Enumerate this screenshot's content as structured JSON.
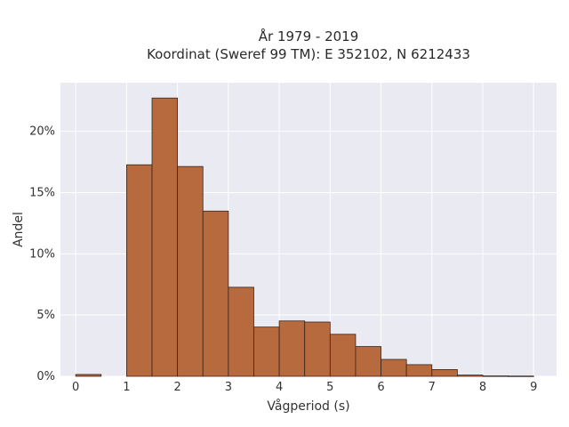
{
  "chart_data": {
    "type": "bar",
    "title": [
      "År 1979 - 2019",
      "Koordinat (Sweref 99 TM): E 352102, N 6212433"
    ],
    "xlabel": "Vågperiod (s)",
    "ylabel": "Andel",
    "xlim": [
      -0.3,
      9.45
    ],
    "ylim": [
      0,
      0.2397
    ],
    "xticks": [
      0,
      1,
      2,
      3,
      4,
      5,
      6,
      7,
      8,
      9
    ],
    "yticks": [
      0,
      0.05,
      0.1,
      0.15,
      0.2
    ],
    "ytick_labels": [
      "0%",
      "5%",
      "10%",
      "15%",
      "20%"
    ],
    "bin_width": 0.5,
    "bins": [
      {
        "x0": 0.0,
        "x1": 0.5,
        "value": 0.0015
      },
      {
        "x0": 1.0,
        "x1": 1.5,
        "value": 0.1727
      },
      {
        "x0": 1.5,
        "x1": 2.0,
        "value": 0.2272
      },
      {
        "x0": 2.0,
        "x1": 2.5,
        "value": 0.1713
      },
      {
        "x0": 2.5,
        "x1": 3.0,
        "value": 0.1349
      },
      {
        "x0": 3.0,
        "x1": 3.5,
        "value": 0.0727
      },
      {
        "x0": 3.5,
        "x1": 4.0,
        "value": 0.0402
      },
      {
        "x0": 4.0,
        "x1": 4.5,
        "value": 0.0452
      },
      {
        "x0": 4.5,
        "x1": 5.0,
        "value": 0.0443
      },
      {
        "x0": 5.0,
        "x1": 5.5,
        "value": 0.0343
      },
      {
        "x0": 5.5,
        "x1": 6.0,
        "value": 0.0243
      },
      {
        "x0": 6.0,
        "x1": 6.5,
        "value": 0.0138
      },
      {
        "x0": 6.5,
        "x1": 7.0,
        "value": 0.0095
      },
      {
        "x0": 7.0,
        "x1": 7.5,
        "value": 0.0055
      },
      {
        "x0": 7.5,
        "x1": 8.0,
        "value": 0.001
      },
      {
        "x0": 8.0,
        "x1": 8.5,
        "value": 0.0003
      },
      {
        "x0": 8.5,
        "x1": 9.0,
        "value": 0.0002
      }
    ],
    "grid": true,
    "colors": {
      "bar_fill": "#b86a3f",
      "bar_edge": "#3a2418",
      "plot_background": "#eaeaf2",
      "grid": "#ffffff"
    }
  }
}
